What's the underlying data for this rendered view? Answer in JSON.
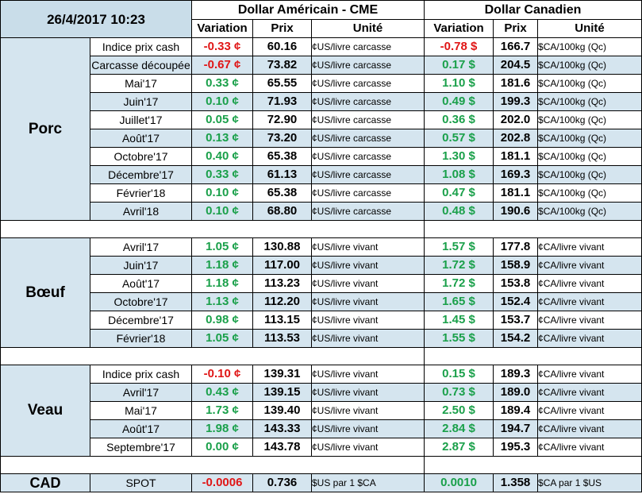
{
  "header": {
    "datetime": "26/4/2017 10:23",
    "usd_title": "Dollar Américain - CME",
    "cad_title": "Dollar Canadien",
    "col_variation": "Variation",
    "col_prix": "Prix",
    "col_unite": "Unité"
  },
  "groups": [
    {
      "name": "Porc",
      "rows": [
        {
          "item": "Indice prix cash",
          "usd_var": "-0.33 ¢",
          "usd_dir": "down",
          "usd_price": "60.16",
          "usd_unit": "¢US/livre carcasse",
          "cad_var": "-0.78 $",
          "cad_dir": "down",
          "cad_price": "166.7",
          "cad_unit": "$CA/100kg (Qc)"
        },
        {
          "item": "Carcasse découpée",
          "usd_var": "-0.67 ¢",
          "usd_dir": "down",
          "usd_price": "73.82",
          "usd_unit": "¢US/livre carcasse",
          "cad_var": "0.17 $",
          "cad_dir": "up",
          "cad_price": "204.5",
          "cad_unit": "$CA/100kg (Qc)"
        },
        {
          "item": "Mai'17",
          "usd_var": "0.33 ¢",
          "usd_dir": "up",
          "usd_price": "65.55",
          "usd_unit": "¢US/livre carcasse",
          "cad_var": "1.10 $",
          "cad_dir": "up",
          "cad_price": "181.6",
          "cad_unit": "$CA/100kg (Qc)"
        },
        {
          "item": "Juin'17",
          "usd_var": "0.10 ¢",
          "usd_dir": "up",
          "usd_price": "71.93",
          "usd_unit": "¢US/livre carcasse",
          "cad_var": "0.49 $",
          "cad_dir": "up",
          "cad_price": "199.3",
          "cad_unit": "$CA/100kg (Qc)"
        },
        {
          "item": "Juillet'17",
          "usd_var": "0.05 ¢",
          "usd_dir": "up",
          "usd_price": "72.90",
          "usd_unit": "¢US/livre carcasse",
          "cad_var": "0.36 $",
          "cad_dir": "up",
          "cad_price": "202.0",
          "cad_unit": "$CA/100kg (Qc)"
        },
        {
          "item": "Août'17",
          "usd_var": "0.13 ¢",
          "usd_dir": "up",
          "usd_price": "73.20",
          "usd_unit": "¢US/livre carcasse",
          "cad_var": "0.57 $",
          "cad_dir": "up",
          "cad_price": "202.8",
          "cad_unit": "$CA/100kg (Qc)"
        },
        {
          "item": "Octobre'17",
          "usd_var": "0.40 ¢",
          "usd_dir": "up",
          "usd_price": "65.38",
          "usd_unit": "¢US/livre carcasse",
          "cad_var": "1.30 $",
          "cad_dir": "up",
          "cad_price": "181.1",
          "cad_unit": "$CA/100kg (Qc)"
        },
        {
          "item": "Décembre'17",
          "usd_var": "0.33 ¢",
          "usd_dir": "up",
          "usd_price": "61.13",
          "usd_unit": "¢US/livre carcasse",
          "cad_var": "1.08 $",
          "cad_dir": "up",
          "cad_price": "169.3",
          "cad_unit": "$CA/100kg (Qc)"
        },
        {
          "item": "Février'18",
          "usd_var": "0.10 ¢",
          "usd_dir": "up",
          "usd_price": "65.38",
          "usd_unit": "¢US/livre carcasse",
          "cad_var": "0.47 $",
          "cad_dir": "up",
          "cad_price": "181.1",
          "cad_unit": "$CA/100kg (Qc)"
        },
        {
          "item": "Avril'18",
          "usd_var": "0.10 ¢",
          "usd_dir": "up",
          "usd_price": "68.80",
          "usd_unit": "¢US/livre carcasse",
          "cad_var": "0.48 $",
          "cad_dir": "up",
          "cad_price": "190.6",
          "cad_unit": "$CA/100kg (Qc)"
        }
      ]
    },
    {
      "name": "Bœuf",
      "rows": [
        {
          "item": "Avril'17",
          "usd_var": "1.05 ¢",
          "usd_dir": "up",
          "usd_price": "130.88",
          "usd_unit": "¢US/livre vivant",
          "cad_var": "1.57 $",
          "cad_dir": "up",
          "cad_price": "177.8",
          "cad_unit": "¢CA/livre vivant"
        },
        {
          "item": "Juin'17",
          "usd_var": "1.18 ¢",
          "usd_dir": "up",
          "usd_price": "117.00",
          "usd_unit": "¢US/livre vivant",
          "cad_var": "1.72 $",
          "cad_dir": "up",
          "cad_price": "158.9",
          "cad_unit": "¢CA/livre vivant"
        },
        {
          "item": "Août'17",
          "usd_var": "1.18 ¢",
          "usd_dir": "up",
          "usd_price": "113.23",
          "usd_unit": "¢US/livre vivant",
          "cad_var": "1.72 $",
          "cad_dir": "up",
          "cad_price": "153.8",
          "cad_unit": "¢CA/livre vivant"
        },
        {
          "item": "Octobre'17",
          "usd_var": "1.13 ¢",
          "usd_dir": "up",
          "usd_price": "112.20",
          "usd_unit": "¢US/livre vivant",
          "cad_var": "1.65 $",
          "cad_dir": "up",
          "cad_price": "152.4",
          "cad_unit": "¢CA/livre vivant"
        },
        {
          "item": "Décembre'17",
          "usd_var": "0.98 ¢",
          "usd_dir": "up",
          "usd_price": "113.15",
          "usd_unit": "¢US/livre vivant",
          "cad_var": "1.45 $",
          "cad_dir": "up",
          "cad_price": "153.7",
          "cad_unit": "¢CA/livre vivant"
        },
        {
          "item": "Février'18",
          "usd_var": "1.05 ¢",
          "usd_dir": "up",
          "usd_price": "113.53",
          "usd_unit": "¢US/livre vivant",
          "cad_var": "1.55 $",
          "cad_dir": "up",
          "cad_price": "154.2",
          "cad_unit": "¢CA/livre vivant"
        }
      ]
    },
    {
      "name": "Veau",
      "rows": [
        {
          "item": "Indice prix cash",
          "usd_var": "-0.10 ¢",
          "usd_dir": "down",
          "usd_price": "139.31",
          "usd_unit": "¢US/livre vivant",
          "cad_var": "0.15 $",
          "cad_dir": "up",
          "cad_price": "189.3",
          "cad_unit": "¢CA/livre vivant"
        },
        {
          "item": "Avril'17",
          "usd_var": "0.43 ¢",
          "usd_dir": "up",
          "usd_price": "139.15",
          "usd_unit": "¢US/livre vivant",
          "cad_var": "0.73 $",
          "cad_dir": "up",
          "cad_price": "189.0",
          "cad_unit": "¢CA/livre vivant"
        },
        {
          "item": "Mai'17",
          "usd_var": "1.73 ¢",
          "usd_dir": "up",
          "usd_price": "139.40",
          "usd_unit": "¢US/livre vivant",
          "cad_var": "2.50 $",
          "cad_dir": "up",
          "cad_price": "189.4",
          "cad_unit": "¢CA/livre vivant"
        },
        {
          "item": "Août'17",
          "usd_var": "1.98 ¢",
          "usd_dir": "up",
          "usd_price": "143.33",
          "usd_unit": "¢US/livre vivant",
          "cad_var": "2.84 $",
          "cad_dir": "up",
          "cad_price": "194.7",
          "cad_unit": "¢CA/livre vivant"
        },
        {
          "item": "Septembre'17",
          "usd_var": "0.00 ¢",
          "usd_dir": "flat",
          "usd_price": "143.78",
          "usd_unit": "¢US/livre vivant",
          "cad_var": "2.87 $",
          "cad_dir": "up",
          "cad_price": "195.3",
          "cad_unit": "¢CA/livre vivant"
        }
      ]
    }
  ],
  "cad_row": {
    "label": "CAD",
    "item": "SPOT",
    "usd_var": "-0.0006",
    "usd_dir": "down",
    "usd_price": "0.736",
    "usd_unit": "$US par 1 $CA",
    "cad_var": "0.0010",
    "cad_dir": "up",
    "cad_price": "1.358",
    "cad_unit": "$CA par 1 $US"
  },
  "colors": {
    "up": "#1aa04a",
    "down": "#e01616",
    "row_blue": "#d5e5ef",
    "row_white": "#ffffff"
  }
}
